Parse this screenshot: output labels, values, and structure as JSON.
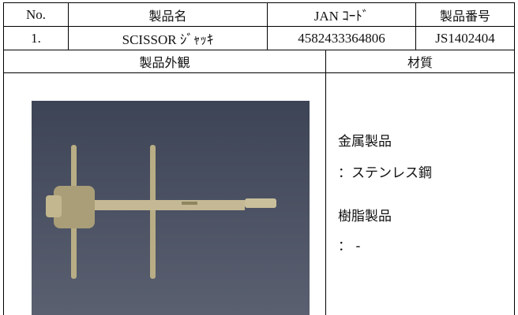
{
  "table": {
    "header": [
      "No.",
      "製品名",
      "JAN ｺｰﾄﾞ",
      "製品番号"
    ],
    "rows": [
      [
        "1.",
        "SCISSOR ｼﾞｬｯｷ",
        "4582433364806",
        "JS1402404"
      ]
    ]
  },
  "sections": {
    "appearance_title": "製品外観",
    "material_title": "材質",
    "materials": [
      "金属製品",
      "：ステンレス鋼",
      "樹脂製品",
      "： -"
    ]
  }
}
